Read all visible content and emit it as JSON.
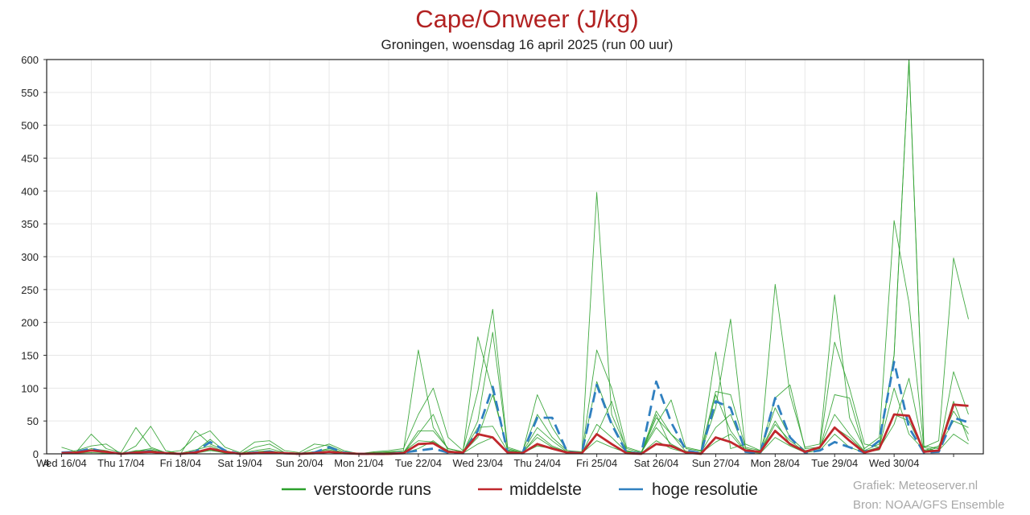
{
  "chart_data": {
    "type": "line",
    "title": "Cape/Onweer (J/kg)",
    "subtitle": "Groningen, woensdag 16 april 2025 (run 00 uur)",
    "xlabel": "",
    "ylabel": "",
    "ylim": [
      0,
      600
    ],
    "yticks": [
      0,
      50,
      100,
      150,
      200,
      250,
      300,
      350,
      400,
      450,
      500,
      550,
      600
    ],
    "grid": true,
    "legend_position": "bottom",
    "x_tick_labels": [
      "4",
      "Wed 16/04",
      "Thu 17/04",
      "Fri 18/04",
      "Sat 19/04",
      "Sun 20/04",
      "Mon 21/04",
      "Tue 22/04",
      "Wed 23/04",
      "Thu 24/04",
      "Fri 25/04",
      "Sat 26/04",
      "Sun 27/04",
      "Mon 28/04",
      "Tue 29/04",
      "Wed 30/04"
    ],
    "x_unit": "days since start of 16/04",
    "series": [
      {
        "name": "middelste",
        "color": "#c0282d",
        "style": "solid",
        "x": [
          0,
          0.25,
          0.5,
          0.75,
          1,
          1.25,
          1.5,
          1.75,
          2,
          2.25,
          2.5,
          2.75,
          3,
          3.25,
          3.5,
          3.75,
          4,
          4.25,
          4.5,
          4.75,
          5,
          5.25,
          5.5,
          5.75,
          6,
          6.25,
          6.5,
          6.75,
          7,
          7.25,
          7.5,
          7.75,
          8,
          8.25,
          8.5,
          8.75,
          9,
          9.25,
          9.5,
          9.75,
          10,
          10.25,
          10.5,
          10.75,
          11,
          11.25,
          11.5,
          11.75,
          12,
          12.25,
          12.5,
          12.75,
          13,
          13.25,
          13.5,
          13.75,
          14,
          14.25,
          14.5,
          14.75,
          15,
          15.25
        ],
        "values": [
          1,
          2,
          5,
          3,
          0,
          2,
          3,
          1,
          0,
          2,
          8,
          3,
          0,
          1,
          2,
          1,
          0,
          1,
          3,
          1,
          0,
          0,
          0,
          1,
          15,
          16,
          3,
          2,
          30,
          25,
          2,
          1,
          15,
          8,
          2,
          1,
          30,
          15,
          1,
          0,
          15,
          12,
          2,
          0,
          25,
          18,
          5,
          3,
          35,
          15,
          3,
          10,
          40,
          20,
          2,
          8,
          60,
          58,
          3,
          5,
          75,
          73
        ]
      },
      {
        "name": "hoge resolutie",
        "color": "#3080c0",
        "style": "dashed",
        "x": [
          0,
          0.25,
          0.5,
          0.75,
          1,
          1.25,
          1.5,
          1.75,
          2,
          2.25,
          2.5,
          2.75,
          3,
          3.25,
          3.5,
          3.75,
          4,
          4.25,
          4.5,
          4.75,
          5,
          5.25,
          5.5,
          5.75,
          6,
          6.25,
          6.5,
          6.75,
          7,
          7.25,
          7.5,
          7.75,
          8,
          8.25,
          8.5,
          8.75,
          9,
          9.25,
          9.5,
          9.75,
          10,
          10.25,
          10.5,
          10.75,
          11,
          11.25,
          11.5,
          11.75,
          12,
          12.25,
          12.5,
          12.75,
          13,
          13.25,
          13.5,
          13.75,
          14,
          14.25,
          14.5,
          14.75,
          15,
          15.25
        ],
        "values": [
          2,
          3,
          8,
          2,
          1,
          2,
          4,
          1,
          0,
          3,
          18,
          5,
          0,
          2,
          3,
          1,
          0,
          2,
          10,
          2,
          0,
          0,
          0,
          2,
          5,
          8,
          2,
          1,
          35,
          102,
          2,
          1,
          55,
          55,
          3,
          1,
          105,
          45,
          2,
          1,
          110,
          48,
          5,
          1,
          80,
          70,
          3,
          1,
          85,
          25,
          2,
          5,
          18,
          10,
          2,
          20,
          140,
          40,
          2,
          3,
          55,
          48
        ]
      },
      {
        "name": "verstoorde runs",
        "color": "#2ca02c",
        "style": "solid",
        "x": [
          0,
          0.25,
          0.5,
          0.75,
          1,
          1.25,
          1.5,
          1.75,
          2,
          2.25,
          2.5,
          2.75,
          3,
          3.25,
          3.5,
          3.75,
          4,
          4.25,
          4.5,
          4.75,
          5,
          5.25,
          5.5,
          5.75,
          6,
          6.25,
          6.5,
          6.75,
          7,
          7.25,
          7.5,
          7.75,
          8,
          8.25,
          8.5,
          8.75,
          9,
          9.25,
          9.5,
          9.75,
          10,
          10.25,
          10.5,
          10.75,
          11,
          11.25,
          11.5,
          11.75,
          12,
          12.25,
          12.5,
          12.75,
          13,
          13.25,
          13.5,
          13.75,
          14,
          14.25,
          14.5,
          14.75,
          15,
          15.25
        ],
        "ensemble": [
          [
            10,
            3,
            30,
            8,
            2,
            40,
            10,
            2,
            5,
            25,
            35,
            10,
            2,
            18,
            20,
            5,
            2,
            15,
            12,
            3,
            1,
            2,
            3,
            5,
            158,
            40,
            8,
            3,
            178,
            95,
            5,
            2,
            90,
            40,
            5,
            3,
            398,
            60,
            8,
            2,
            65,
            30,
            10,
            5,
            95,
            90,
            10,
            5,
            258,
            90,
            10,
            15,
            242,
            55,
            8,
            25,
            355,
            230,
            10,
            20,
            298,
            205
          ],
          [
            2,
            5,
            12,
            15,
            0,
            12,
            42,
            5,
            0,
            35,
            15,
            5,
            0,
            10,
            15,
            2,
            0,
            8,
            15,
            5,
            0,
            3,
            5,
            8,
            60,
            100,
            25,
            5,
            95,
            220,
            10,
            3,
            60,
            25,
            5,
            2,
            158,
            100,
            10,
            3,
            45,
            82,
            8,
            4,
            155,
            8,
            15,
            5,
            85,
            105,
            8,
            10,
            170,
            100,
            15,
            10,
            150,
            600,
            10,
            3,
            125,
            60
          ],
          [
            0,
            1,
            5,
            2,
            0,
            3,
            6,
            1,
            0,
            1,
            5,
            2,
            0,
            2,
            4,
            1,
            0,
            1,
            4,
            1,
            0,
            1,
            2,
            1,
            30,
            60,
            4,
            2,
            50,
            185,
            8,
            2,
            40,
            20,
            3,
            1,
            110,
            48,
            5,
            1,
            55,
            30,
            3,
            2,
            70,
            205,
            8,
            3,
            70,
            25,
            5,
            8,
            90,
            85,
            5,
            15,
            150,
            600,
            12,
            8,
            80,
            20
          ],
          [
            1,
            2,
            8,
            5,
            0,
            5,
            5,
            2,
            0,
            4,
            22,
            4,
            0,
            3,
            5,
            1,
            0,
            3,
            6,
            2,
            0,
            1,
            3,
            2,
            35,
            35,
            8,
            3,
            40,
            42,
            4,
            1,
            30,
            12,
            3,
            1,
            45,
            25,
            3,
            1,
            60,
            10,
            4,
            1,
            90,
            35,
            5,
            4,
            50,
            15,
            4,
            10,
            60,
            30,
            4,
            10,
            100,
            30,
            6,
            5,
            30,
            15
          ],
          [
            0,
            1,
            2,
            1,
            0,
            2,
            3,
            1,
            0,
            2,
            6,
            1,
            0,
            1,
            3,
            1,
            0,
            1,
            3,
            1,
            0,
            0,
            1,
            1,
            8,
            20,
            3,
            1,
            15,
            25,
            2,
            1,
            12,
            8,
            2,
            1,
            20,
            10,
            2,
            1,
            20,
            8,
            2,
            1,
            18,
            30,
            3,
            1,
            25,
            12,
            2,
            5,
            30,
            10,
            2,
            6,
            60,
            50,
            3,
            10,
            50,
            40
          ],
          [
            3,
            1,
            6,
            3,
            1,
            4,
            8,
            2,
            1,
            6,
            12,
            3,
            1,
            5,
            8,
            2,
            1,
            3,
            8,
            2,
            1,
            1,
            2,
            3,
            20,
            18,
            5,
            2,
            25,
            90,
            6,
            2,
            25,
            10,
            3,
            2,
            30,
            80,
            4,
            2,
            40,
            15,
            3,
            2,
            40,
            60,
            4,
            3,
            45,
            20,
            3,
            8,
            40,
            25,
            3,
            8,
            45,
            115,
            5,
            12,
            65,
            30
          ]
        ]
      }
    ]
  },
  "legend": [
    {
      "label": "verstoorde runs",
      "color": "#2ca02c"
    },
    {
      "label": "middelste",
      "color": "#c0282d"
    },
    {
      "label": "hoge resolutie",
      "color": "#3080c0"
    }
  ],
  "credits": {
    "line1": "Grafiek: Meteoserver.nl",
    "line2": "Bron: NOAA/GFS Ensemble"
  }
}
